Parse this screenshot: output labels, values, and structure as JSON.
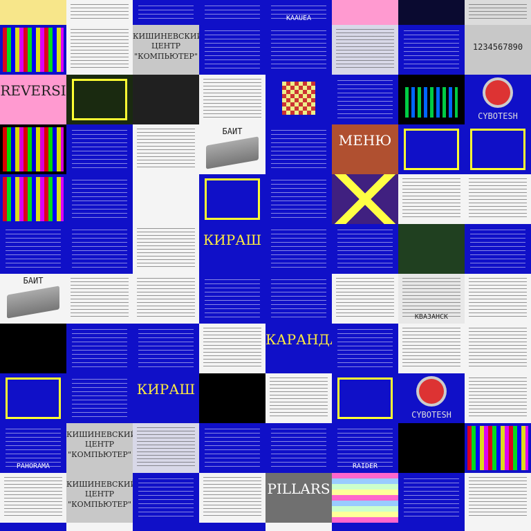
{
  "rows": [
    [
      {
        "bg": "#f7e68a",
        "cap": "",
        "style": "plain"
      },
      {
        "bg": "#f4f4f4",
        "cap": "",
        "style": "paper"
      },
      {
        "bg": "#1010c8",
        "cap": "",
        "style": "blue"
      },
      {
        "bg": "#1010c8",
        "cap": "",
        "style": "blue"
      },
      {
        "bg": "#1010c8",
        "cap": "KAAUEA",
        "style": "blue"
      },
      {
        "bg": "#ff9ad0",
        "cap": "",
        "style": "plain"
      },
      {
        "bg": "#0a0a30",
        "cap": "",
        "style": "dark"
      },
      {
        "bg": "#dcdcdc",
        "cap": "",
        "style": "paper"
      }
    ],
    [
      {
        "bg": "#1010c8",
        "cap": "",
        "style": "mosaic"
      },
      {
        "bg": "#f4f4f4",
        "cap": "",
        "style": "paper"
      },
      {
        "bg": "#c8c8c8",
        "cap": "КИШИНЕВСКИЙ ЦЕНТР \"КОМПЬЮТЕР\"",
        "style": "title"
      },
      {
        "bg": "#1010c8",
        "cap": "",
        "style": "blue"
      },
      {
        "bg": "#1010c8",
        "cap": "",
        "style": "blue"
      },
      {
        "bg": "#d8d8e8",
        "cap": "",
        "style": "paper"
      },
      {
        "bg": "#1010c8",
        "cap": "",
        "style": "blue"
      },
      {
        "bg": "#c8c8c8",
        "cap": "1234567890",
        "style": "digits"
      }
    ],
    [
      {
        "bg": "#ff9ad0",
        "cap": "REVERSI",
        "style": "title"
      },
      {
        "bg": "#1a2a10",
        "cap": "",
        "style": "frame"
      },
      {
        "bg": "#202020",
        "cap": "",
        "style": "plain"
      },
      {
        "bg": "#f4f4f4",
        "cap": "",
        "style": "paper"
      },
      {
        "bg": "#1010c8",
        "cap": "",
        "style": "chess"
      },
      {
        "bg": "#1010c8",
        "cap": "",
        "style": "blue"
      },
      {
        "bg": "#000000",
        "cap": "",
        "style": "bars"
      },
      {
        "bg": "#1010c8",
        "cap": "CYBOTESH",
        "style": "robot"
      }
    ],
    [
      {
        "bg": "#000000",
        "cap": "",
        "style": "mosaic"
      },
      {
        "bg": "#1010c8",
        "cap": "",
        "style": "blue"
      },
      {
        "bg": "#f4f4f4",
        "cap": "",
        "style": "paper"
      },
      {
        "bg": "#f4f4f4",
        "cap": "БАЙТ",
        "style": "keyboard"
      },
      {
        "bg": "#1010c8",
        "cap": "",
        "style": "blue"
      },
      {
        "bg": "#b05030",
        "cap": "МЕНЮ",
        "style": "title"
      },
      {
        "bg": "#1010c8",
        "cap": "",
        "style": "frame"
      },
      {
        "bg": "#1010c8",
        "cap": "",
        "style": "frame"
      }
    ],
    [
      {
        "bg": "#1010c8",
        "cap": "",
        "style": "mosaic"
      },
      {
        "bg": "#1010c8",
        "cap": "",
        "style": "blue"
      },
      {
        "bg": "#f4f4f4",
        "cap": "",
        "style": "plain"
      },
      {
        "bg": "#1010c8",
        "cap": "",
        "style": "frame"
      },
      {
        "bg": "#1010c8",
        "cap": "",
        "style": "blue"
      },
      {
        "bg": "#402080",
        "cap": "",
        "style": "cross"
      },
      {
        "bg": "#f4f4f4",
        "cap": "",
        "style": "paper"
      },
      {
        "bg": "#f4f4f4",
        "cap": "",
        "style": "paper"
      }
    ],
    [
      {
        "bg": "#1010c8",
        "cap": "",
        "style": "blue"
      },
      {
        "bg": "#1010c8",
        "cap": "",
        "style": "blue"
      },
      {
        "bg": "#f4f4f4",
        "cap": "",
        "style": "paper"
      },
      {
        "bg": "#1010c8",
        "cap": "КИРАШ",
        "style": "title"
      },
      {
        "bg": "#1010c8",
        "cap": "",
        "style": "blue"
      },
      {
        "bg": "#1010c8",
        "cap": "",
        "style": "blue"
      },
      {
        "bg": "#204020",
        "cap": "",
        "style": "plain"
      },
      {
        "bg": "#1010c8",
        "cap": "",
        "style": "blue"
      }
    ],
    [
      {
        "bg": "#f4f4f4",
        "cap": "БАЙТ",
        "style": "keyboard"
      },
      {
        "bg": "#f4f4f4",
        "cap": "",
        "style": "paper"
      },
      {
        "bg": "#f4f4f4",
        "cap": "",
        "style": "paper"
      },
      {
        "bg": "#1010c8",
        "cap": "",
        "style": "blue"
      },
      {
        "bg": "#1010c8",
        "cap": "",
        "style": "blue"
      },
      {
        "bg": "#f4f4f4",
        "cap": "",
        "style": "paper"
      },
      {
        "bg": "#e8e8e8",
        "cap": "КВАЗАНСК",
        "style": "paper"
      },
      {
        "bg": "#f4f4f4",
        "cap": "",
        "style": "paper"
      }
    ],
    [
      {
        "bg": "#000000",
        "cap": "",
        "style": "plain"
      },
      {
        "bg": "#1010c8",
        "cap": "",
        "style": "blue"
      },
      {
        "bg": "#1010c8",
        "cap": "",
        "style": "blue"
      },
      {
        "bg": "#f4f4f4",
        "cap": "",
        "style": "paper"
      },
      {
        "bg": "#1010c8",
        "cap": "КАРАНДАШ",
        "style": "title"
      },
      {
        "bg": "#1010c8",
        "cap": "",
        "style": "blue"
      },
      {
        "bg": "#f4f4f4",
        "cap": "",
        "style": "paper"
      },
      {
        "bg": "#f4f4f4",
        "cap": "",
        "style": "paper"
      }
    ],
    [
      {
        "bg": "#1010c8",
        "cap": "",
        "style": "frame"
      },
      {
        "bg": "#1010c8",
        "cap": "",
        "style": "blue"
      },
      {
        "bg": "#1010c8",
        "cap": "КИРАШ",
        "style": "title"
      },
      {
        "bg": "#000000",
        "cap": "",
        "style": "plain"
      },
      {
        "bg": "#f4f4f4",
        "cap": "",
        "style": "paper"
      },
      {
        "bg": "#1010c8",
        "cap": "",
        "style": "frame"
      },
      {
        "bg": "#1010c8",
        "cap": "CYBOTESH",
        "style": "robot"
      },
      {
        "bg": "#f4f4f4",
        "cap": "",
        "style": "paper"
      }
    ],
    [
      {
        "bg": "#1010c8",
        "cap": "PAHORAMA",
        "style": "blue"
      },
      {
        "bg": "#c8c8c8",
        "cap": "КИШИНЕВСКИЙ ЦЕНТР \"КОМПЬЮТЕР\"",
        "style": "title"
      },
      {
        "bg": "#d8d8e8",
        "cap": "",
        "style": "paper"
      },
      {
        "bg": "#1010c8",
        "cap": "",
        "style": "blue"
      },
      {
        "bg": "#1010c8",
        "cap": "",
        "style": "blue"
      },
      {
        "bg": "#1010c8",
        "cap": "RAIDER",
        "style": "blue"
      },
      {
        "bg": "#000000",
        "cap": "",
        "style": "plain"
      },
      {
        "bg": "#1010c8",
        "cap": "",
        "style": "mosaic"
      }
    ],
    [
      {
        "bg": "#f4f4f4",
        "cap": "",
        "style": "paper"
      },
      {
        "bg": "#c8c8c8",
        "cap": "КИШИНЕВСКИЙ ЦЕНТР \"КОМПЬЮТЕР\"",
        "style": "title"
      },
      {
        "bg": "#1010c8",
        "cap": "",
        "style": "blue"
      },
      {
        "bg": "#f4f4f4",
        "cap": "",
        "style": "paper"
      },
      {
        "bg": "#707070",
        "cap": "PILLARS",
        "style": "title"
      },
      {
        "bg": "#ffffff",
        "cap": "",
        "style": "stripes"
      },
      {
        "bg": "#1010c8",
        "cap": "",
        "style": "blue"
      },
      {
        "bg": "#f4f4f4",
        "cap": "",
        "style": "paper"
      }
    ],
    [
      {
        "bg": "#1010c8",
        "cap": "",
        "style": "plain"
      },
      {
        "bg": "#f4f4f4",
        "cap": "",
        "style": "plain"
      },
      {
        "bg": "#1010c8",
        "cap": "",
        "style": "plain"
      },
      {
        "bg": "#1010c8",
        "cap": "",
        "style": "plain"
      },
      {
        "bg": "#f4f4f4",
        "cap": "",
        "style": "plain"
      },
      {
        "bg": "#1010c8",
        "cap": "",
        "style": "plain"
      },
      {
        "bg": "#1010c8",
        "cap": "",
        "style": "plain"
      },
      {
        "bg": "#f4f4f4",
        "cap": "",
        "style": "plain"
      }
    ]
  ]
}
